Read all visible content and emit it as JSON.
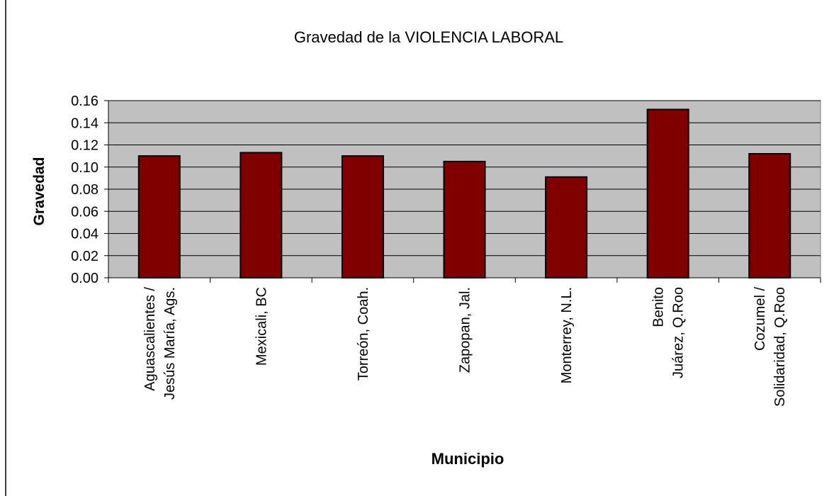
{
  "chart_data": {
    "type": "bar",
    "title": "Gravedad de la VIOLENCIA LABORAL",
    "x_label": "Municipio",
    "y_label": "Gravedad",
    "categories": [
      "Aguascalientes /\nJesús María, Ags.",
      "Mexicali, BC",
      "Torreón, Coah.",
      "Zapopan, Jal.",
      "Monterrey, N.L.",
      "Benito\nJuárez, Q.Roo",
      "Cozumel /\nSolidaridad, Q.Roo"
    ],
    "values": [
      0.11,
      0.113,
      0.11,
      0.105,
      0.091,
      0.152,
      0.112
    ],
    "color": "#800000",
    "ylim": [
      0,
      0.16
    ],
    "yticks": [
      {
        "value": 0,
        "label": "0.00"
      },
      {
        "value": 0.02,
        "label": "0.02"
      },
      {
        "value": 0.04,
        "label": "0.04"
      },
      {
        "value": 0.06,
        "label": "0.06"
      },
      {
        "value": 0.08,
        "label": "0.08"
      },
      {
        "value": 0.1,
        "label": "0.10"
      },
      {
        "value": 0.12,
        "label": "0.12"
      },
      {
        "value": 0.14,
        "label": "0.14"
      },
      {
        "value": 0.16,
        "label": "0.16"
      }
    ],
    "grid": true
  }
}
